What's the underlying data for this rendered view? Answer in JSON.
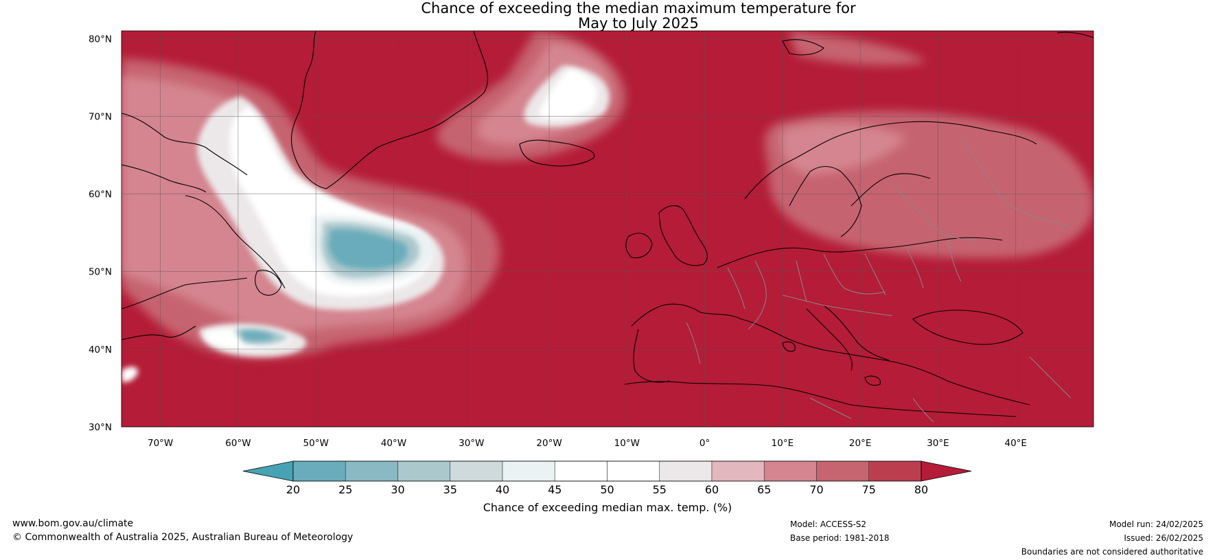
{
  "title": {
    "line1": "Chance of exceeding the median maximum temperature for",
    "line2": "May to July 2025"
  },
  "map": {
    "region": "North Atlantic and Europe",
    "lon_range": [
      -75,
      50
    ],
    "lat_range": [
      30,
      81
    ],
    "lat_ticks": [
      "80°N",
      "70°N",
      "60°N",
      "50°N",
      "40°N",
      "30°N"
    ],
    "lat_values": [
      80,
      70,
      60,
      50,
      40,
      30
    ],
    "lon_ticks": [
      "70°W",
      "60°W",
      "50°W",
      "40°W",
      "30°W",
      "20°W",
      "10°W",
      "0°",
      "10°E",
      "20°E",
      "30°E",
      "40°E"
    ],
    "lon_values": [
      -70,
      -60,
      -50,
      -40,
      -30,
      -20,
      -10,
      0,
      10,
      20,
      30,
      40
    ],
    "gridlines": true,
    "background_color": "#b41c37"
  },
  "colorbar": {
    "ticks": [
      "20",
      "25",
      "30",
      "35",
      "40",
      "45",
      "50",
      "55",
      "60",
      "65",
      "70",
      "75",
      "80"
    ],
    "colors": [
      "#47a3b3",
      "#6aacbb",
      "#8bb9c3",
      "#abc8cc",
      "#cfdadd",
      "#ebf2f3",
      "#ffffff",
      "#ffffff",
      "#ece8e9",
      "#e2b7bd",
      "#d4858f",
      "#c6646f",
      "#bb3e4f",
      "#b41c37"
    ],
    "label": "Chance of exceeding median max. temp. (%)"
  },
  "footer": {
    "url": "www.bom.gov.au/climate",
    "copyright": "© Commonwealth of Australia 2025, Australian Bureau of Meteorology",
    "model": "Model: ACCESS-S2",
    "base_period": "Base period: 1981-2018",
    "model_run": "Model run: 24/02/2025",
    "issued": "Issued: 26/02/2025",
    "disclaimer": "Boundaries are not considered authoritative"
  }
}
